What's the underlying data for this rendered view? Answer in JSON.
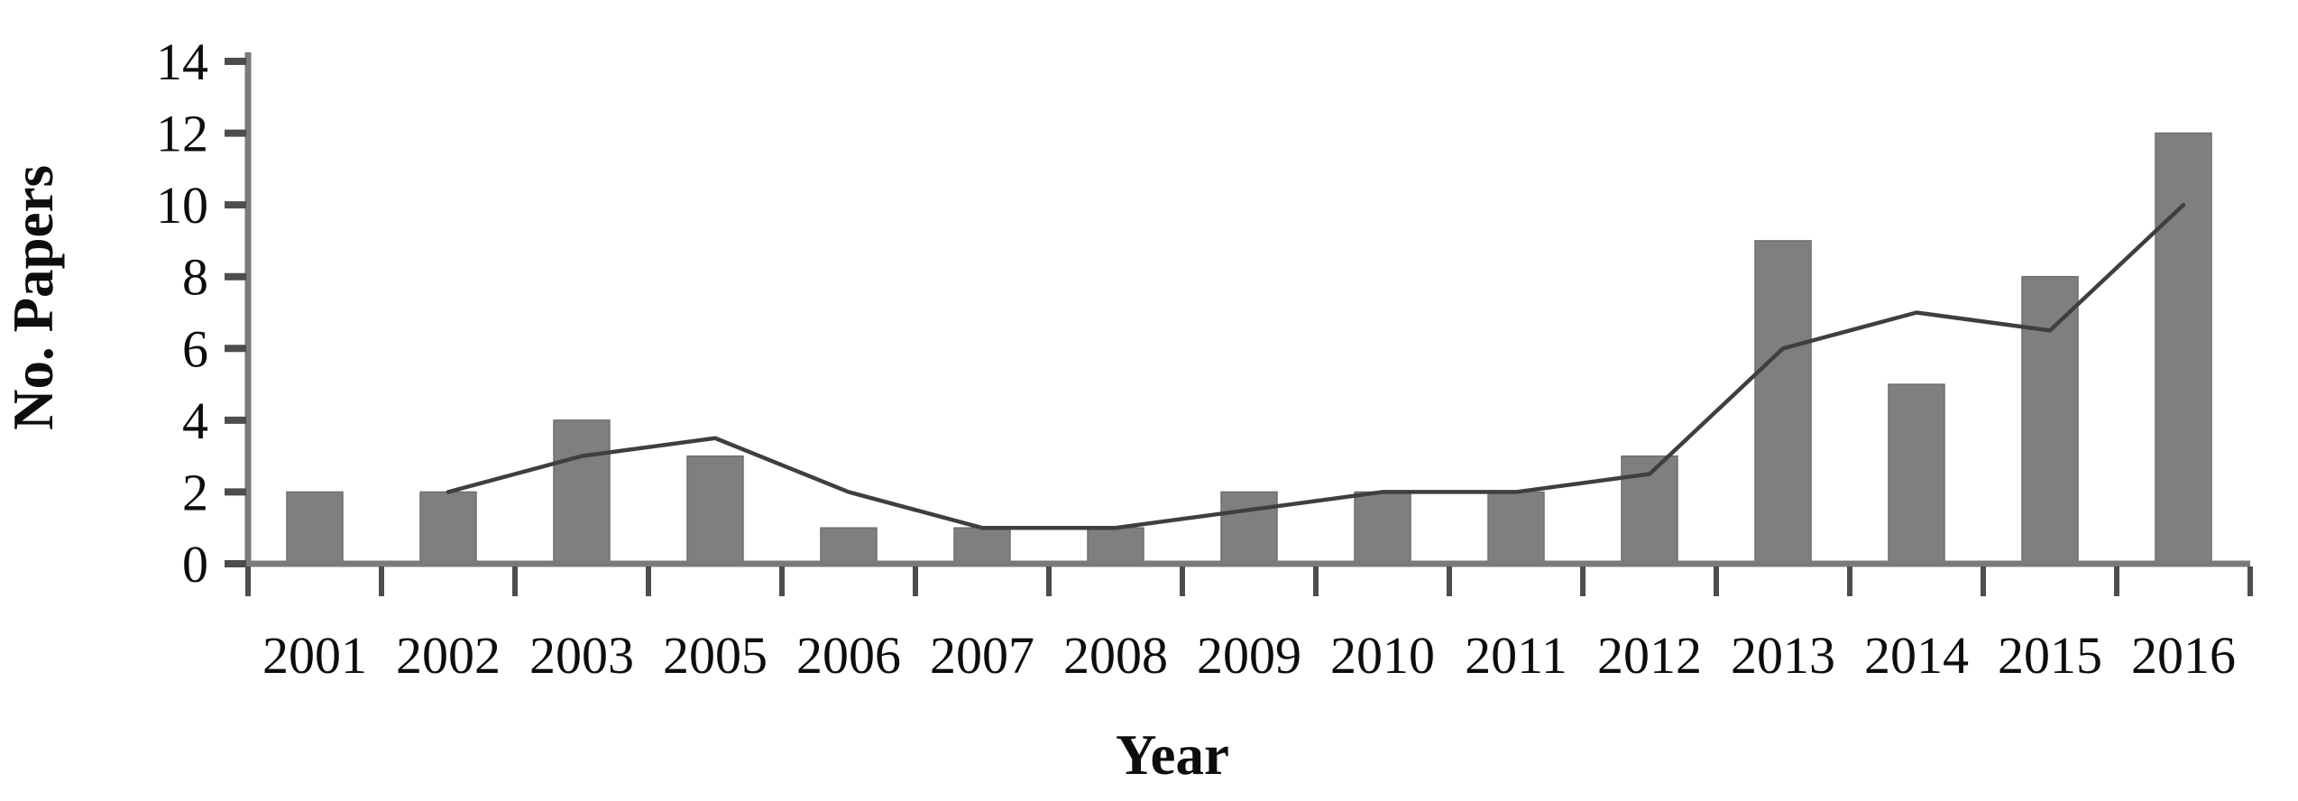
{
  "figure": {
    "background": "#ffffff"
  },
  "chart_data": {
    "type": "bar+line",
    "categories": [
      "2001",
      "2002",
      "2003",
      "2005",
      "2006",
      "2007",
      "2008",
      "2009",
      "2010",
      "2011",
      "2012",
      "2013",
      "2014",
      "2015",
      "2016"
    ],
    "bar_values": [
      2,
      2,
      4,
      3,
      1,
      1,
      1,
      2,
      2,
      2,
      3,
      9,
      5,
      8,
      12
    ],
    "line_values": [
      null,
      2,
      3,
      3.5,
      2,
      1,
      1,
      1.5,
      2,
      2,
      2.5,
      6,
      7,
      6.5,
      10
    ],
    "title": "",
    "xlabel": "Year",
    "ylabel": "No. Papers",
    "ylim": [
      0,
      14
    ],
    "yticks": [
      0,
      2,
      4,
      6,
      8,
      10,
      12,
      14
    ],
    "grid": false,
    "legend": false,
    "colors": {
      "bar_fill": "#7f7f7f",
      "bar_edge": "#6f6f6f",
      "trend_line": "#3f3f3f",
      "axis": "#7a7a7a",
      "tick_mark": "#4d4d4d",
      "text": "#0d0d0d"
    }
  }
}
